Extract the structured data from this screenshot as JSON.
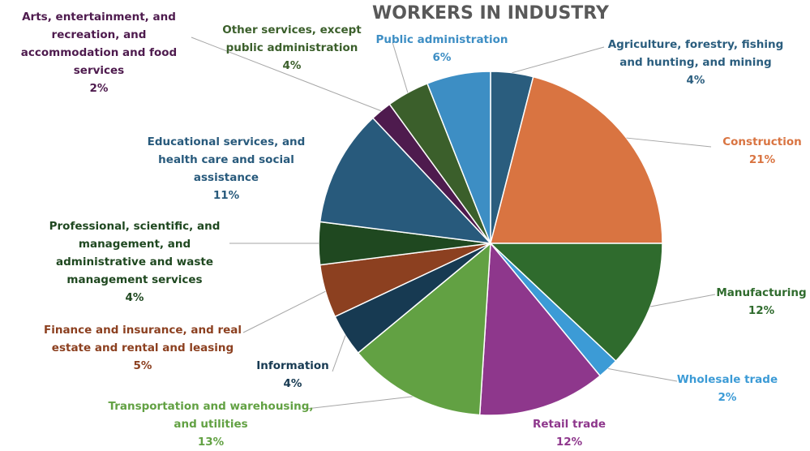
{
  "chart_data": {
    "type": "pie",
    "title": "WORKERS IN INDUSTRY",
    "categories": [
      "Agriculture, forestry, fishing and hunting, and mining",
      "Construction",
      "Manufacturing",
      "Wholesale trade",
      "Retail trade",
      "Transportation and warehousing, and utilities",
      "Information",
      "Finance and insurance, and real estate and rental and leasing",
      "Professional, scientific, and management, and administrative and waste management services",
      "Educational services, and health care and social assistance",
      "Arts, entertainment, and recreation, and accommodation and food services",
      "Other services, except public administration",
      "Public administration"
    ],
    "values": [
      4,
      21,
      12,
      2,
      12,
      13,
      4,
      5,
      4,
      11,
      2,
      4,
      6
    ],
    "value_labels": [
      "4%",
      "21%",
      "12%",
      "2%",
      "12%",
      "13%",
      "4%",
      "5%",
      "4%",
      "11%",
      "2%",
      "4%",
      "6%"
    ],
    "colors": [
      "#2a5d7e",
      "#d97441",
      "#2f6b2d",
      "#3c9bd6",
      "#8e378c",
      "#62a143",
      "#173a52",
      "#8c4020",
      "#1f4820",
      "#285a7c",
      "#4e1b4e",
      "#3b5f2b",
      "#3d8ec4"
    ]
  }
}
